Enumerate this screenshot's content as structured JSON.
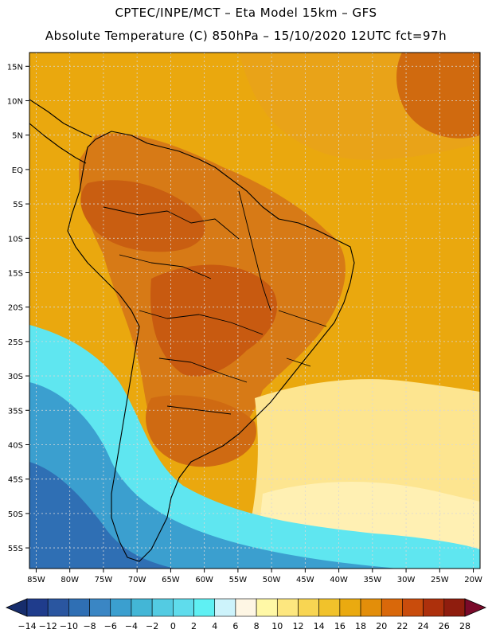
{
  "header": {
    "line1": "CPTEC/INPE/MCT –  Eta Model 15km – GFS",
    "line2": "Absolute Temperature (C) 850hPa – 15/10/2020 12UTC fct=97h"
  },
  "map": {
    "lat_labels": [
      "15N",
      "10N",
      "5N",
      "EQ",
      "5S",
      "10S",
      "15S",
      "20S",
      "25S",
      "30S",
      "35S",
      "40S",
      "45S",
      "50S",
      "55S"
    ],
    "lon_labels": [
      "85W",
      "80W",
      "75W",
      "70W",
      "65W",
      "60W",
      "55W",
      "50W",
      "45W",
      "40W",
      "35W",
      "30W",
      "25W",
      "20W"
    ],
    "lat_range": [
      -58,
      17
    ],
    "lon_range": [
      -86,
      -19
    ]
  },
  "colorbar": {
    "labels": [
      "-14",
      "-12",
      "-10",
      "-8",
      "-6",
      "-4",
      "-2",
      "0",
      "2",
      "4",
      "6",
      "8",
      "10",
      "12",
      "14",
      "16",
      "18",
      "20",
      "22",
      "24",
      "26",
      "28"
    ],
    "colors": [
      "#1f3c8c",
      "#2a56a0",
      "#2f6fb4",
      "#3a86c4",
      "#3b9fcf",
      "#43b6d6",
      "#53cbe2",
      "#5fdcec",
      "#5ff0f3",
      "#cdf3fb",
      "#fef6e4",
      "#fff8a6",
      "#fde77f",
      "#f8d552",
      "#f1c22b",
      "#eaaa10",
      "#e38e0a",
      "#d9680a",
      "#c94c0c",
      "#ad300c",
      "#8f1d0e"
    ],
    "under_color": "#172d6c",
    "over_color": "#7a0a2a"
  },
  "palette": {
    "sea_warm": "#eaa80e",
    "land_hot": "#d77a16",
    "land_very_hot": "#c85a10",
    "sea_cold": "#3b9fcf",
    "sea_cyan": "#5fe6f0",
    "sea_pale": "#fde590",
    "coastline": "#000000",
    "grid": "#d8d8d8"
  }
}
